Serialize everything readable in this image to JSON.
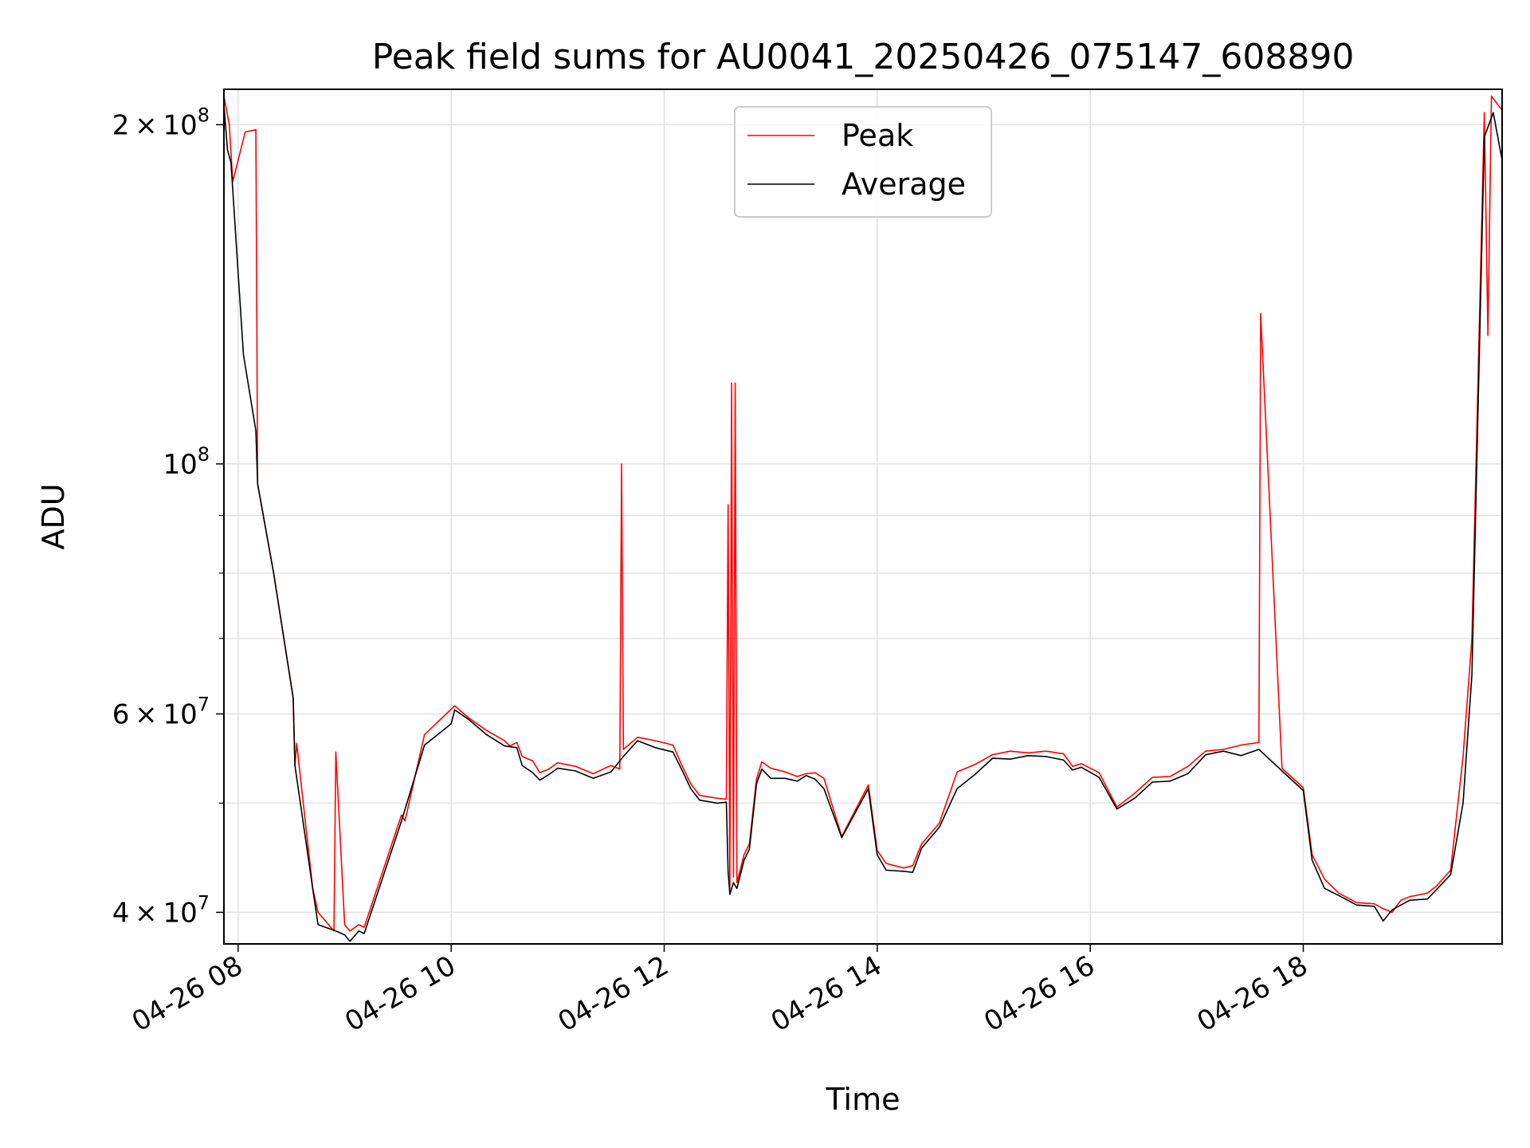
{
  "chart_data": {
    "type": "line",
    "title": "Peak field sums for AU0041_20250426_075147_608890",
    "xlabel": "Time",
    "ylabel": "ADU",
    "y_scale": "log",
    "xlim": [
      "2025-04-26 07:52",
      "2025-04-26 19:52"
    ],
    "ylim": [
      37500000,
      215000000
    ],
    "grid": true,
    "legend_position": "top-center",
    "x_tick_labels": [
      "04-26 08",
      "04-26 10",
      "04-26 12",
      "04-26 14",
      "04-26 16",
      "04-26 18"
    ],
    "x_tick_values": [
      "2025-04-26 08:00",
      "2025-04-26 10:00",
      "2025-04-26 12:00",
      "2025-04-26 14:00",
      "2025-04-26 16:00",
      "2025-04-26 18:00"
    ],
    "y_major_ticks": [
      {
        "value": 40000000,
        "mantissa": "4",
        "exponent": "7"
      },
      {
        "value": 60000000,
        "mantissa": "6",
        "exponent": "7"
      },
      {
        "value": 100000000,
        "mantissa": "",
        "exponent": "8"
      },
      {
        "value": 200000000,
        "mantissa": "2",
        "exponent": "8"
      }
    ],
    "y_minor_ticks": [
      50000000,
      70000000,
      80000000,
      90000000
    ],
    "series": [
      {
        "name": "Peak",
        "color": "#ff0000",
        "points": [
          [
            "2025-04-26 07:52",
            212000000
          ],
          [
            "2025-04-26 07:55",
            200000000
          ],
          [
            "2025-04-26 07:57",
            178000000
          ],
          [
            "2025-04-26 08:04",
            197000000
          ],
          [
            "2025-04-26 08:10",
            198000000
          ],
          [
            "2025-04-26 08:11",
            96000000
          ],
          [
            "2025-04-26 08:20",
            80000000
          ],
          [
            "2025-04-26 08:31",
            62000000
          ],
          [
            "2025-04-26 08:32",
            54000000
          ],
          [
            "2025-04-26 08:33",
            56500000
          ],
          [
            "2025-04-26 08:42",
            42000000
          ],
          [
            "2025-04-26 08:45",
            40000000
          ],
          [
            "2025-04-26 08:54",
            38500000
          ],
          [
            "2025-04-26 08:55",
            55500000
          ],
          [
            "2025-04-26 09:00",
            39000000
          ],
          [
            "2025-04-26 09:03",
            38500000
          ],
          [
            "2025-04-26 09:08",
            39000000
          ],
          [
            "2025-04-26 09:11",
            38800000
          ],
          [
            "2025-04-26 09:32",
            48800000
          ],
          [
            "2025-04-26 09:34",
            48200000
          ],
          [
            "2025-04-26 09:45",
            57500000
          ],
          [
            "2025-04-26 10:02",
            61000000
          ],
          [
            "2025-04-26 10:10",
            59500000
          ],
          [
            "2025-04-26 10:20",
            58000000
          ],
          [
            "2025-04-26 10:30",
            56800000
          ],
          [
            "2025-04-26 10:33",
            56200000
          ],
          [
            "2025-04-26 10:37",
            56600000
          ],
          [
            "2025-04-26 10:40",
            55000000
          ],
          [
            "2025-04-26 10:46",
            54500000
          ],
          [
            "2025-04-26 10:50",
            53200000
          ],
          [
            "2025-04-26 10:55",
            53600000
          ],
          [
            "2025-04-26 11:00",
            54300000
          ],
          [
            "2025-04-26 11:10",
            53900000
          ],
          [
            "2025-04-26 11:20",
            53100000
          ],
          [
            "2025-04-26 11:30",
            54000000
          ],
          [
            "2025-04-26 11:35",
            53600000
          ],
          [
            "2025-04-26 11:36",
            100000000
          ],
          [
            "2025-04-26 11:37",
            55800000
          ],
          [
            "2025-04-26 11:45",
            57200000
          ],
          [
            "2025-04-26 11:55",
            56800000
          ],
          [
            "2025-04-26 12:05",
            56300000
          ],
          [
            "2025-04-26 12:10",
            54000000
          ],
          [
            "2025-04-26 12:15",
            52000000
          ],
          [
            "2025-04-26 12:20",
            50800000
          ],
          [
            "2025-04-26 12:30",
            50500000
          ],
          [
            "2025-04-26 12:35",
            50400000
          ],
          [
            "2025-04-26 12:36",
            92000000
          ],
          [
            "2025-04-26 12:37",
            42000000
          ],
          [
            "2025-04-26 12:38",
            118000000
          ],
          [
            "2025-04-26 12:39",
            43000000
          ],
          [
            "2025-04-26 12:40",
            118000000
          ],
          [
            "2025-04-26 12:41",
            42500000
          ],
          [
            "2025-04-26 12:45",
            45000000
          ],
          [
            "2025-04-26 12:48",
            46000000
          ],
          [
            "2025-04-26 12:52",
            52500000
          ],
          [
            "2025-04-26 12:55",
            54400000
          ],
          [
            "2025-04-26 13:00",
            53700000
          ],
          [
            "2025-04-26 13:08",
            53300000
          ],
          [
            "2025-04-26 13:15",
            52800000
          ],
          [
            "2025-04-26 13:20",
            53100000
          ],
          [
            "2025-04-26 13:25",
            53200000
          ],
          [
            "2025-04-26 13:30",
            52600000
          ],
          [
            "2025-04-26 13:40",
            46700000
          ],
          [
            "2025-04-26 13:55",
            51900000
          ],
          [
            "2025-04-26 14:00",
            45400000
          ],
          [
            "2025-04-26 14:05",
            44200000
          ],
          [
            "2025-04-26 14:15",
            43800000
          ],
          [
            "2025-04-26 14:20",
            44000000
          ],
          [
            "2025-04-26 14:25",
            46000000
          ],
          [
            "2025-04-26 14:35",
            48000000
          ],
          [
            "2025-04-26 14:45",
            53300000
          ],
          [
            "2025-04-26 14:55",
            54100000
          ],
          [
            "2025-04-26 15:05",
            55200000
          ],
          [
            "2025-04-26 15:15",
            55600000
          ],
          [
            "2025-04-26 15:25",
            55400000
          ],
          [
            "2025-04-26 15:35",
            55600000
          ],
          [
            "2025-04-26 15:45",
            55300000
          ],
          [
            "2025-04-26 15:50",
            53900000
          ],
          [
            "2025-04-26 15:55",
            54200000
          ],
          [
            "2025-04-26 16:05",
            53200000
          ],
          [
            "2025-04-26 16:15",
            49600000
          ],
          [
            "2025-04-26 16:25",
            51000000
          ],
          [
            "2025-04-26 16:35",
            52700000
          ],
          [
            "2025-04-26 16:45",
            52800000
          ],
          [
            "2025-04-26 16:55",
            53900000
          ],
          [
            "2025-04-26 17:05",
            55600000
          ],
          [
            "2025-04-26 17:15",
            55800000
          ],
          [
            "2025-04-26 17:25",
            56300000
          ],
          [
            "2025-04-26 17:35",
            56600000
          ],
          [
            "2025-04-26 17:36",
            136000000
          ],
          [
            "2025-04-26 17:48",
            53700000
          ],
          [
            "2025-04-26 18:00",
            51600000
          ],
          [
            "2025-04-26 18:05",
            45000000
          ],
          [
            "2025-04-26 18:12",
            42800000
          ],
          [
            "2025-04-26 18:20",
            41600000
          ],
          [
            "2025-04-26 18:30",
            40800000
          ],
          [
            "2025-04-26 18:40",
            40700000
          ],
          [
            "2025-04-26 18:45",
            40300000
          ],
          [
            "2025-04-26 18:50",
            40000000
          ],
          [
            "2025-04-26 18:55",
            41000000
          ],
          [
            "2025-04-26 19:00",
            41300000
          ],
          [
            "2025-04-26 19:10",
            41600000
          ],
          [
            "2025-04-26 19:15",
            42200000
          ],
          [
            "2025-04-26 19:23",
            43600000
          ],
          [
            "2025-04-26 19:30",
            55000000
          ],
          [
            "2025-04-26 19:35",
            70000000
          ],
          [
            "2025-04-26 19:42",
            205000000
          ],
          [
            "2025-04-26 19:44",
            130000000
          ],
          [
            "2025-04-26 19:46",
            212000000
          ],
          [
            "2025-04-26 19:52",
            206000000
          ]
        ]
      },
      {
        "name": "Average",
        "color": "#000000",
        "points": [
          [
            "2025-04-26 07:52",
            208000000
          ],
          [
            "2025-04-26 07:54",
            190000000
          ],
          [
            "2025-04-26 07:56",
            185000000
          ],
          [
            "2025-04-26 08:03",
            125000000
          ],
          [
            "2025-04-26 08:10",
            107000000
          ],
          [
            "2025-04-26 08:11",
            96000000
          ],
          [
            "2025-04-26 08:20",
            80000000
          ],
          [
            "2025-04-26 08:31",
            62000000
          ],
          [
            "2025-04-26 08:32",
            54000000
          ],
          [
            "2025-04-26 08:42",
            42000000
          ],
          [
            "2025-04-26 08:45",
            39000000
          ],
          [
            "2025-04-26 08:55",
            38500000
          ],
          [
            "2025-04-26 09:00",
            38200000
          ],
          [
            "2025-04-26 09:03",
            37700000
          ],
          [
            "2025-04-26 09:08",
            38500000
          ],
          [
            "2025-04-26 09:11",
            38300000
          ],
          [
            "2025-04-26 09:32",
            48200000
          ],
          [
            "2025-04-26 09:45",
            56300000
          ],
          [
            "2025-04-26 10:00",
            58800000
          ],
          [
            "2025-04-26 10:02",
            60500000
          ],
          [
            "2025-04-26 10:10",
            59300000
          ],
          [
            "2025-04-26 10:20",
            57500000
          ],
          [
            "2025-04-26 10:30",
            56200000
          ],
          [
            "2025-04-26 10:37",
            56000000
          ],
          [
            "2025-04-26 10:40",
            54000000
          ],
          [
            "2025-04-26 10:46",
            53200000
          ],
          [
            "2025-04-26 10:50",
            52400000
          ],
          [
            "2025-04-26 10:55",
            53000000
          ],
          [
            "2025-04-26 11:00",
            53700000
          ],
          [
            "2025-04-26 11:10",
            53400000
          ],
          [
            "2025-04-26 11:20",
            52600000
          ],
          [
            "2025-04-26 11:30",
            53300000
          ],
          [
            "2025-04-26 11:37",
            55000000
          ],
          [
            "2025-04-26 11:45",
            56800000
          ],
          [
            "2025-04-26 11:55",
            56000000
          ],
          [
            "2025-04-26 12:05",
            55500000
          ],
          [
            "2025-04-26 12:10",
            53500000
          ],
          [
            "2025-04-26 12:15",
            51500000
          ],
          [
            "2025-04-26 12:20",
            50300000
          ],
          [
            "2025-04-26 12:30",
            50000000
          ],
          [
            "2025-04-26 12:35",
            50100000
          ],
          [
            "2025-04-26 12:36",
            43500000
          ],
          [
            "2025-04-26 12:37",
            41500000
          ],
          [
            "2025-04-26 12:39",
            42500000
          ],
          [
            "2025-04-26 12:41",
            42000000
          ],
          [
            "2025-04-26 12:45",
            44500000
          ],
          [
            "2025-04-26 12:48",
            45500000
          ],
          [
            "2025-04-26 12:52",
            52000000
          ],
          [
            "2025-04-26 12:55",
            53600000
          ],
          [
            "2025-04-26 13:00",
            52600000
          ],
          [
            "2025-04-26 13:08",
            52600000
          ],
          [
            "2025-04-26 13:15",
            52300000
          ],
          [
            "2025-04-26 13:20",
            52900000
          ],
          [
            "2025-04-26 13:25",
            52500000
          ],
          [
            "2025-04-26 13:30",
            51500000
          ],
          [
            "2025-04-26 13:40",
            46600000
          ],
          [
            "2025-04-26 13:55",
            51500000
          ],
          [
            "2025-04-26 14:00",
            45000000
          ],
          [
            "2025-04-26 14:05",
            43600000
          ],
          [
            "2025-04-26 14:15",
            43500000
          ],
          [
            "2025-04-26 14:20",
            43400000
          ],
          [
            "2025-04-26 14:25",
            45600000
          ],
          [
            "2025-04-26 14:35",
            47600000
          ],
          [
            "2025-04-26 14:45",
            51500000
          ],
          [
            "2025-04-26 14:55",
            53000000
          ],
          [
            "2025-04-26 15:05",
            54800000
          ],
          [
            "2025-04-26 15:15",
            54700000
          ],
          [
            "2025-04-26 15:25",
            55100000
          ],
          [
            "2025-04-26 15:35",
            55000000
          ],
          [
            "2025-04-26 15:45",
            54600000
          ],
          [
            "2025-04-26 15:50",
            53500000
          ],
          [
            "2025-04-26 15:55",
            53800000
          ],
          [
            "2025-04-26 16:05",
            52700000
          ],
          [
            "2025-04-26 16:15",
            49400000
          ],
          [
            "2025-04-26 16:25",
            50500000
          ],
          [
            "2025-04-26 16:35",
            52200000
          ],
          [
            "2025-04-26 16:45",
            52300000
          ],
          [
            "2025-04-26 16:55",
            53100000
          ],
          [
            "2025-04-26 17:05",
            55200000
          ],
          [
            "2025-04-26 17:15",
            55600000
          ],
          [
            "2025-04-26 17:25",
            55100000
          ],
          [
            "2025-04-26 17:35",
            55800000
          ],
          [
            "2025-04-26 17:48",
            53400000
          ],
          [
            "2025-04-26 18:00",
            51300000
          ],
          [
            "2025-04-26 18:05",
            44500000
          ],
          [
            "2025-04-26 18:12",
            42000000
          ],
          [
            "2025-04-26 18:20",
            41400000
          ],
          [
            "2025-04-26 18:30",
            40600000
          ],
          [
            "2025-04-26 18:40",
            40500000
          ],
          [
            "2025-04-26 18:45",
            39300000
          ],
          [
            "2025-04-26 18:50",
            40200000
          ],
          [
            "2025-04-26 18:55",
            40600000
          ],
          [
            "2025-04-26 19:00",
            41000000
          ],
          [
            "2025-04-26 19:10",
            41100000
          ],
          [
            "2025-04-26 19:15",
            41900000
          ],
          [
            "2025-04-26 19:23",
            43200000
          ],
          [
            "2025-04-26 19:30",
            50000000
          ],
          [
            "2025-04-26 19:35",
            65000000
          ],
          [
            "2025-04-26 19:42",
            195000000
          ],
          [
            "2025-04-26 19:47",
            205000000
          ],
          [
            "2025-04-26 19:52",
            186000000
          ]
        ]
      }
    ]
  }
}
